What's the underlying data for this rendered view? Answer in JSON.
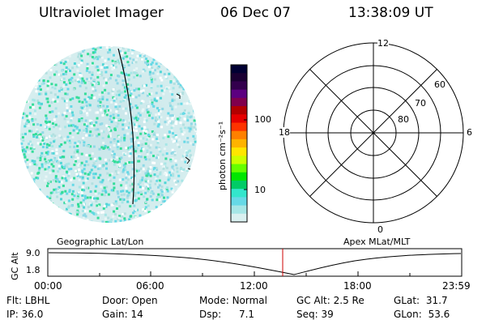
{
  "header": {
    "title": "Ultraviolet Imager",
    "date": "06 Dec 07",
    "time": "13:38:09 UT"
  },
  "colorbar": {
    "unit_label": "photon cm⁻²s⁻¹",
    "ticks": [
      "100",
      "10"
    ],
    "colors": [
      "#000033",
      "#1a0033",
      "#33004d",
      "#5c0080",
      "#80004d",
      "#b30000",
      "#e60000",
      "#ff3300",
      "#ff8000",
      "#ffb300",
      "#ffe600",
      "#ccff00",
      "#66ff00",
      "#00e600",
      "#00cc66",
      "#33e6cc",
      "#66d9e6",
      "#a6e6e6",
      "#d9f0f0"
    ]
  },
  "polar_plot": {
    "top_label": "12",
    "bottom_label": "0",
    "left_label": "18",
    "right_label": "6",
    "lat_labels": [
      "60",
      "70",
      "80"
    ]
  },
  "timeline": {
    "axis_label": "GC Alt",
    "y_max": "9.0",
    "y_min": "1.8",
    "left_caption": "Geographic Lat/Lon",
    "right_caption": "Apex MLat/MLT",
    "ticks": [
      "00:00",
      "06:00",
      "12:00",
      "18:00",
      "23:59"
    ],
    "current_time_marker": "13:38"
  },
  "info": {
    "row1": [
      {
        "label": "Flt:",
        "value": "LBHL"
      },
      {
        "label": "Door:",
        "value": "Open"
      },
      {
        "label": "Mode:",
        "value": "Normal"
      },
      {
        "label": "GC Alt:",
        "value": "2.5 Re"
      },
      {
        "label": "GLat:",
        "value": "31.7"
      }
    ],
    "row2": [
      {
        "label": "IP:",
        "value": "36.0"
      },
      {
        "label": "Gain:",
        "value": "14"
      },
      {
        "label": "Dsp:",
        "value": "7.1"
      },
      {
        "label": "Seq:",
        "value": "39"
      },
      {
        "label": "GLon:",
        "value": "53.6"
      }
    ]
  }
}
